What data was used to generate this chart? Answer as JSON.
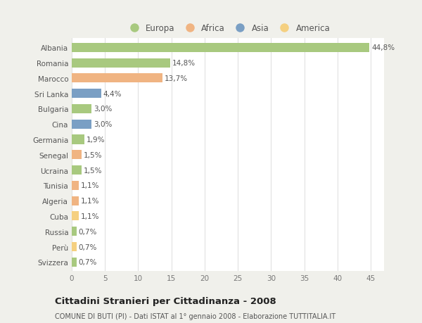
{
  "countries": [
    "Albania",
    "Romania",
    "Marocco",
    "Sri Lanka",
    "Bulgaria",
    "Cina",
    "Germania",
    "Senegal",
    "Ucraina",
    "Tunisia",
    "Algeria",
    "Cuba",
    "Russia",
    "Perù",
    "Svizzera"
  ],
  "values": [
    44.8,
    14.8,
    13.7,
    4.4,
    3.0,
    3.0,
    1.9,
    1.5,
    1.5,
    1.1,
    1.1,
    1.1,
    0.7,
    0.7,
    0.7
  ],
  "labels": [
    "44,8%",
    "14,8%",
    "13,7%",
    "4,4%",
    "3,0%",
    "3,0%",
    "1,9%",
    "1,5%",
    "1,5%",
    "1,1%",
    "1,1%",
    "1,1%",
    "0,7%",
    "0,7%",
    "0,7%"
  ],
  "colors": [
    "#a8c97f",
    "#a8c97f",
    "#f0b482",
    "#7a9fc4",
    "#a8c97f",
    "#7a9fc4",
    "#a8c97f",
    "#f0b482",
    "#a8c97f",
    "#f0b482",
    "#f0b482",
    "#f5d080",
    "#a8c97f",
    "#f5d080",
    "#a8c97f"
  ],
  "legend": {
    "Europa": "#a8c97f",
    "Africa": "#f0b482",
    "Asia": "#7a9fc4",
    "America": "#f5d080"
  },
  "xlim": [
    0,
    47
  ],
  "xticks": [
    0,
    5,
    10,
    15,
    20,
    25,
    30,
    35,
    40,
    45
  ],
  "title": "Cittadini Stranieri per Cittadinanza - 2008",
  "subtitle": "COMUNE DI BUTI (PI) - Dati ISTAT al 1° gennaio 2008 - Elaborazione TUTTITALIA.IT",
  "bg_color": "#f0f0eb",
  "bar_bg_color": "#ffffff",
  "label_fontsize": 7.5,
  "tick_fontsize": 7.5,
  "legend_fontsize": 8.5
}
